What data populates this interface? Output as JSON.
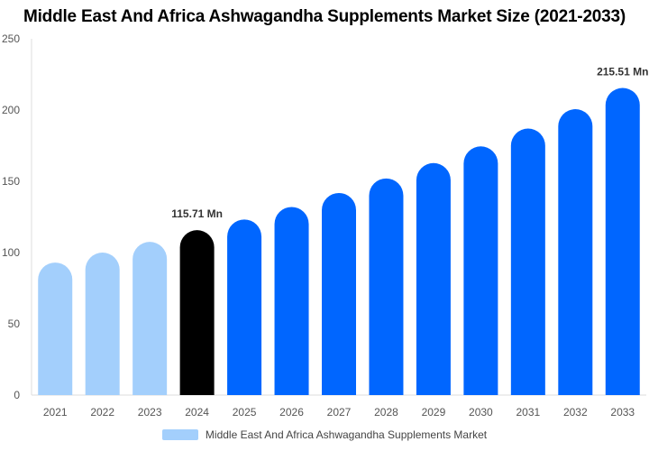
{
  "chart_data": {
    "type": "bar",
    "title": "Middle East And Africa Ashwagandha Supplements Market Size (2021-2033)",
    "categories": [
      "2021",
      "2022",
      "2023",
      "2024",
      "2025",
      "2026",
      "2027",
      "2028",
      "2029",
      "2030",
      "2031",
      "2032",
      "2033"
    ],
    "series": [
      {
        "name": "Middle East And Africa Ashwagandha Supplements Market",
        "values": [
          93,
          100,
          107.5,
          115.71,
          123.2,
          132,
          141.8,
          152,
          162.8,
          174.5,
          187,
          200.6,
          215.51
        ]
      }
    ],
    "data_labels": {
      "3": "115.71 Mn",
      "12": "215.51 Mn"
    },
    "ylim": [
      0,
      250
    ],
    "yticks": [
      0,
      50,
      100,
      150,
      200,
      250
    ],
    "grid": false,
    "legend": "bottom",
    "colors": {
      "historical": "#a3cffc",
      "base_year": "#000000",
      "forecast": "#0066ff"
    }
  }
}
